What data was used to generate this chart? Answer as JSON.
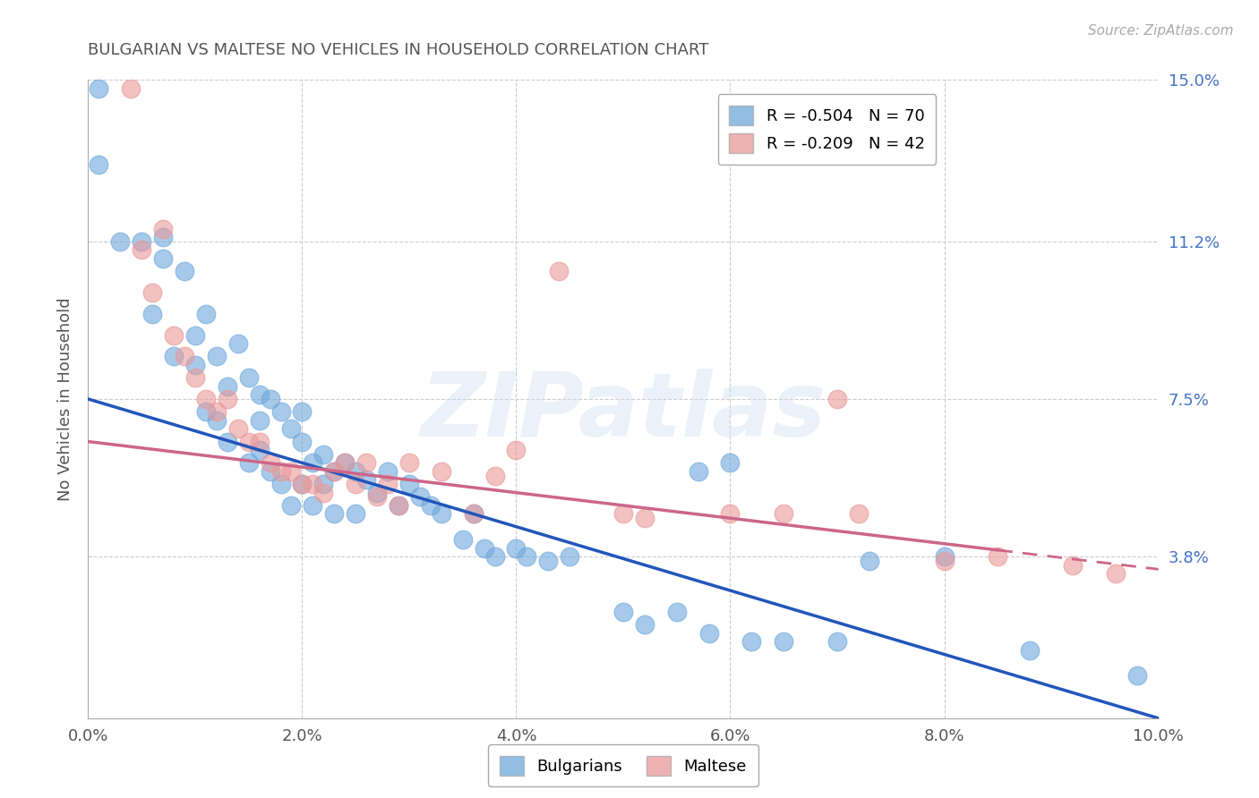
{
  "title": "BULGARIAN VS MALTESE NO VEHICLES IN HOUSEHOLD CORRELATION CHART",
  "source": "Source: ZipAtlas.com",
  "ylabel": "No Vehicles in Household",
  "xlim": [
    0.0,
    0.1
  ],
  "ylim": [
    0.0,
    0.15
  ],
  "yticks": [
    0.038,
    0.075,
    0.112,
    0.15
  ],
  "ytick_labels": [
    "3.8%",
    "7.5%",
    "11.2%",
    "15.0%"
  ],
  "xticks": [
    0.0,
    0.02,
    0.04,
    0.06,
    0.08,
    0.1
  ],
  "xtick_labels": [
    "0.0%",
    "2.0%",
    "4.0%",
    "6.0%",
    "8.0%",
    "10.0%"
  ],
  "bulgarian_color": "#6fa8dc",
  "maltese_color": "#ea9999",
  "bulgarian_line_color": "#2255bb",
  "maltese_line_color": "#cc6688",
  "bulgarian_R": -0.504,
  "bulgarian_N": 70,
  "maltese_R": -0.209,
  "maltese_N": 42,
  "bulgarian_line_x0": 0.0,
  "bulgarian_line_y0": 0.075,
  "bulgarian_line_x1": 0.1,
  "bulgarian_line_y1": 0.0,
  "maltese_line_x0": 0.0,
  "maltese_line_y0": 0.065,
  "maltese_line_x1": 0.1,
  "maltese_line_y1": 0.035,
  "watermark": "ZIPatlas",
  "bg_color": "#ffffff",
  "grid_color": "#cccccc",
  "title_color": "#555555",
  "right_label_color": "#4472c4",
  "source_color": "#aaaaaa",
  "bulgarians_x": [
    0.001,
    0.001,
    0.003,
    0.005,
    0.006,
    0.007,
    0.007,
    0.008,
    0.009,
    0.01,
    0.01,
    0.011,
    0.011,
    0.012,
    0.012,
    0.013,
    0.013,
    0.014,
    0.015,
    0.015,
    0.016,
    0.016,
    0.016,
    0.017,
    0.017,
    0.018,
    0.018,
    0.019,
    0.019,
    0.02,
    0.02,
    0.02,
    0.021,
    0.021,
    0.022,
    0.022,
    0.023,
    0.023,
    0.024,
    0.025,
    0.025,
    0.026,
    0.027,
    0.028,
    0.029,
    0.03,
    0.031,
    0.032,
    0.033,
    0.035,
    0.036,
    0.037,
    0.038,
    0.04,
    0.041,
    0.043,
    0.045,
    0.05,
    0.052,
    0.055,
    0.057,
    0.058,
    0.06,
    0.062,
    0.065,
    0.07,
    0.073,
    0.08,
    0.088,
    0.098
  ],
  "bulgarians_y": [
    0.148,
    0.13,
    0.112,
    0.112,
    0.095,
    0.113,
    0.108,
    0.085,
    0.105,
    0.09,
    0.083,
    0.095,
    0.072,
    0.085,
    0.07,
    0.078,
    0.065,
    0.088,
    0.08,
    0.06,
    0.076,
    0.07,
    0.063,
    0.075,
    0.058,
    0.072,
    0.055,
    0.068,
    0.05,
    0.072,
    0.065,
    0.055,
    0.06,
    0.05,
    0.062,
    0.055,
    0.058,
    0.048,
    0.06,
    0.058,
    0.048,
    0.056,
    0.053,
    0.058,
    0.05,
    0.055,
    0.052,
    0.05,
    0.048,
    0.042,
    0.048,
    0.04,
    0.038,
    0.04,
    0.038,
    0.037,
    0.038,
    0.025,
    0.022,
    0.025,
    0.058,
    0.02,
    0.06,
    0.018,
    0.018,
    0.018,
    0.037,
    0.038,
    0.016,
    0.01
  ],
  "maltese_x": [
    0.004,
    0.005,
    0.006,
    0.007,
    0.008,
    0.009,
    0.01,
    0.011,
    0.012,
    0.013,
    0.014,
    0.015,
    0.016,
    0.017,
    0.018,
    0.019,
    0.02,
    0.021,
    0.022,
    0.023,
    0.024,
    0.025,
    0.026,
    0.027,
    0.028,
    0.029,
    0.03,
    0.033,
    0.036,
    0.038,
    0.04,
    0.044,
    0.05,
    0.052,
    0.06,
    0.065,
    0.07,
    0.072,
    0.08,
    0.085,
    0.092,
    0.096
  ],
  "maltese_y": [
    0.148,
    0.11,
    0.1,
    0.115,
    0.09,
    0.085,
    0.08,
    0.075,
    0.072,
    0.075,
    0.068,
    0.065,
    0.065,
    0.06,
    0.058,
    0.058,
    0.055,
    0.055,
    0.053,
    0.058,
    0.06,
    0.055,
    0.06,
    0.052,
    0.055,
    0.05,
    0.06,
    0.058,
    0.048,
    0.057,
    0.063,
    0.105,
    0.048,
    0.047,
    0.048,
    0.048,
    0.075,
    0.048,
    0.037,
    0.038,
    0.036,
    0.034
  ]
}
